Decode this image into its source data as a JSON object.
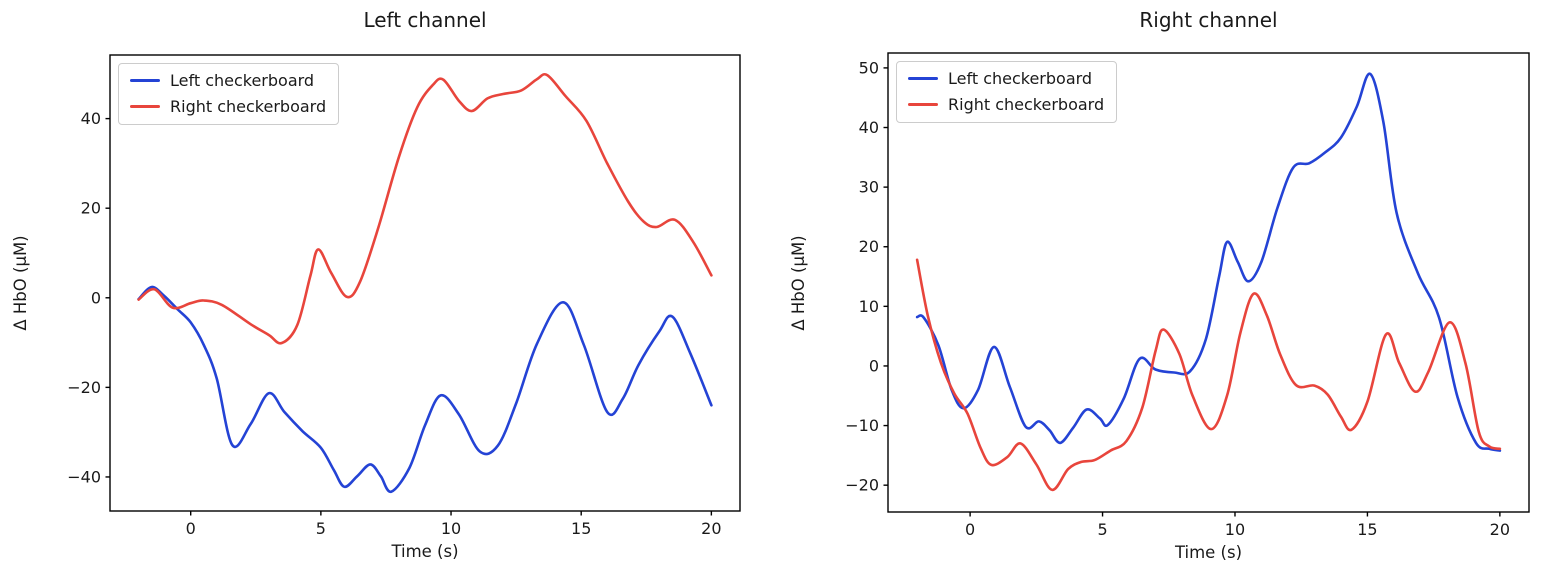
{
  "figure": {
    "background": "#ffffff",
    "text_color": "#1a1a1a",
    "spine_color": "#000000"
  },
  "chart_data": [
    {
      "type": "line",
      "title": "Left channel",
      "xlabel": "Time (s)",
      "ylabel": "Δ HbO (μM)",
      "xlim": [
        -3.1,
        21.1
      ],
      "ylim": [
        -47.6,
        54.2
      ],
      "xticks": [
        0,
        5,
        10,
        15,
        20
      ],
      "yticks": [
        -40,
        -20,
        0,
        20,
        40
      ],
      "grid": false,
      "legend_position": "upper left",
      "series": [
        {
          "name": "Left checkerboard",
          "color": "#2443d5",
          "points": [
            [
              -2.0,
              -0.3
            ],
            [
              -1.5,
              2.4
            ],
            [
              -1.0,
              0.3
            ],
            [
              -0.5,
              -2.6
            ],
            [
              0.0,
              -5.5
            ],
            [
              0.5,
              -10.5
            ],
            [
              1.0,
              -18.0
            ],
            [
              1.6,
              -32.9
            ],
            [
              2.3,
              -28.2
            ],
            [
              3.0,
              -21.3
            ],
            [
              3.6,
              -25.5
            ],
            [
              4.3,
              -29.8
            ],
            [
              5.0,
              -33.5
            ],
            [
              5.5,
              -38.5
            ],
            [
              5.9,
              -42.2
            ],
            [
              6.4,
              -39.8
            ],
            [
              6.9,
              -37.2
            ],
            [
              7.3,
              -39.8
            ],
            [
              7.7,
              -43.3
            ],
            [
              8.4,
              -38.0
            ],
            [
              9.0,
              -28.5
            ],
            [
              9.6,
              -21.8
            ],
            [
              10.3,
              -26.0
            ],
            [
              11.1,
              -34.3
            ],
            [
              11.8,
              -33.0
            ],
            [
              12.5,
              -23.6
            ],
            [
              13.3,
              -10.3
            ],
            [
              14.3,
              -1.0
            ],
            [
              15.1,
              -10.5
            ],
            [
              16.0,
              -25.5
            ],
            [
              16.6,
              -22.5
            ],
            [
              17.2,
              -15.0
            ],
            [
              18.0,
              -7.5
            ],
            [
              18.5,
              -4.2
            ],
            [
              19.2,
              -12.5
            ],
            [
              20.0,
              -24.0
            ]
          ]
        },
        {
          "name": "Right checkerboard",
          "color": "#e8453c",
          "points": [
            [
              -2.0,
              -0.4
            ],
            [
              -1.4,
              1.9
            ],
            [
              -0.7,
              -2.2
            ],
            [
              0.0,
              -1.2
            ],
            [
              0.5,
              -0.6
            ],
            [
              1.2,
              -1.6
            ],
            [
              2.3,
              -5.9
            ],
            [
              3.0,
              -8.3
            ],
            [
              3.5,
              -10.1
            ],
            [
              4.1,
              -6.0
            ],
            [
              4.6,
              5.0
            ],
            [
              4.9,
              10.8
            ],
            [
              5.4,
              5.5
            ],
            [
              6.0,
              0.2
            ],
            [
              6.5,
              3.5
            ],
            [
              7.2,
              15.5
            ],
            [
              8.0,
              31.5
            ],
            [
              8.7,
              42.5
            ],
            [
              9.3,
              47.5
            ],
            [
              9.7,
              48.7
            ],
            [
              10.3,
              44.0
            ],
            [
              10.8,
              41.7
            ],
            [
              11.4,
              44.5
            ],
            [
              12.0,
              45.5
            ],
            [
              12.7,
              46.3
            ],
            [
              13.3,
              48.8
            ],
            [
              13.7,
              49.7
            ],
            [
              14.4,
              45.0
            ],
            [
              15.2,
              39.5
            ],
            [
              16.0,
              30.0
            ],
            [
              16.8,
              21.5
            ],
            [
              17.4,
              17.0
            ],
            [
              17.9,
              15.8
            ],
            [
              18.6,
              17.4
            ],
            [
              19.3,
              12.5
            ],
            [
              20.0,
              5.0
            ]
          ]
        }
      ]
    },
    {
      "type": "line",
      "title": "Right channel",
      "xlabel": "Time (s)",
      "ylabel": "Δ HbO (μM)",
      "xlim": [
        -3.1,
        21.1
      ],
      "ylim": [
        -24.5,
        52.5
      ],
      "xticks": [
        0,
        5,
        10,
        15,
        20
      ],
      "yticks": [
        -20,
        -10,
        0,
        10,
        20,
        30,
        40,
        50
      ],
      "grid": false,
      "legend_position": "upper left",
      "series": [
        {
          "name": "Left checkerboard",
          "color": "#2443d5",
          "points": [
            [
              -2.0,
              8.2
            ],
            [
              -1.75,
              8.1
            ],
            [
              -1.2,
              3.5
            ],
            [
              -0.7,
              -4.0
            ],
            [
              -0.25,
              -7.1
            ],
            [
              0.3,
              -4.0
            ],
            [
              0.9,
              3.2
            ],
            [
              1.5,
              -3.5
            ],
            [
              2.1,
              -10.2
            ],
            [
              2.6,
              -9.3
            ],
            [
              3.0,
              -10.8
            ],
            [
              3.4,
              -12.9
            ],
            [
              3.9,
              -10.3
            ],
            [
              4.4,
              -7.3
            ],
            [
              4.9,
              -8.8
            ],
            [
              5.2,
              -9.9
            ],
            [
              5.8,
              -5.5
            ],
            [
              6.4,
              1.2
            ],
            [
              7.0,
              -0.6
            ],
            [
              7.7,
              -1.1
            ],
            [
              8.3,
              -0.9
            ],
            [
              8.9,
              4.5
            ],
            [
              9.4,
              15.0
            ],
            [
              9.7,
              20.8
            ],
            [
              10.1,
              17.5
            ],
            [
              10.5,
              14.2
            ],
            [
              11.0,
              17.5
            ],
            [
              11.6,
              26.5
            ],
            [
              12.2,
              33.3
            ],
            [
              12.8,
              34.0
            ],
            [
              13.4,
              35.8
            ],
            [
              14.0,
              38.3
            ],
            [
              14.6,
              43.5
            ],
            [
              15.1,
              49.0
            ],
            [
              15.6,
              41.0
            ],
            [
              16.1,
              25.7
            ],
            [
              16.9,
              15.6
            ],
            [
              17.7,
              8.2
            ],
            [
              18.4,
              -5.2
            ],
            [
              19.1,
              -12.9
            ],
            [
              19.6,
              -13.9
            ],
            [
              20.0,
              -14.2
            ]
          ]
        },
        {
          "name": "Right checkerboard",
          "color": "#e8453c",
          "points": [
            [
              -2.0,
              17.8
            ],
            [
              -1.6,
              8.5
            ],
            [
              -1.1,
              0.5
            ],
            [
              -0.6,
              -4.6
            ],
            [
              -0.1,
              -8.0
            ],
            [
              0.4,
              -13.8
            ],
            [
              0.8,
              -16.6
            ],
            [
              1.4,
              -15.3
            ],
            [
              1.9,
              -13.0
            ],
            [
              2.5,
              -16.5
            ],
            [
              3.1,
              -20.8
            ],
            [
              3.7,
              -17.3
            ],
            [
              4.2,
              -16.1
            ],
            [
              4.7,
              -15.8
            ],
            [
              5.3,
              -14.2
            ],
            [
              5.9,
              -12.6
            ],
            [
              6.5,
              -7.0
            ],
            [
              7.0,
              2.5
            ],
            [
              7.3,
              6.1
            ],
            [
              7.9,
              2.0
            ],
            [
              8.4,
              -5.0
            ],
            [
              9.1,
              -10.6
            ],
            [
              9.7,
              -5.0
            ],
            [
              10.2,
              5.5
            ],
            [
              10.7,
              12.1
            ],
            [
              11.2,
              8.5
            ],
            [
              11.7,
              2.0
            ],
            [
              12.3,
              -3.2
            ],
            [
              13.0,
              -3.3
            ],
            [
              13.5,
              -4.8
            ],
            [
              14.0,
              -8.5
            ],
            [
              14.4,
              -10.7
            ],
            [
              15.0,
              -6.0
            ],
            [
              15.7,
              5.3
            ],
            [
              16.2,
              0.5
            ],
            [
              16.8,
              -4.3
            ],
            [
              17.3,
              -1.0
            ],
            [
              18.1,
              7.3
            ],
            [
              18.7,
              0.5
            ],
            [
              19.2,
              -11.0
            ],
            [
              19.6,
              -13.5
            ],
            [
              20.0,
              -13.9
            ]
          ]
        }
      ]
    }
  ]
}
